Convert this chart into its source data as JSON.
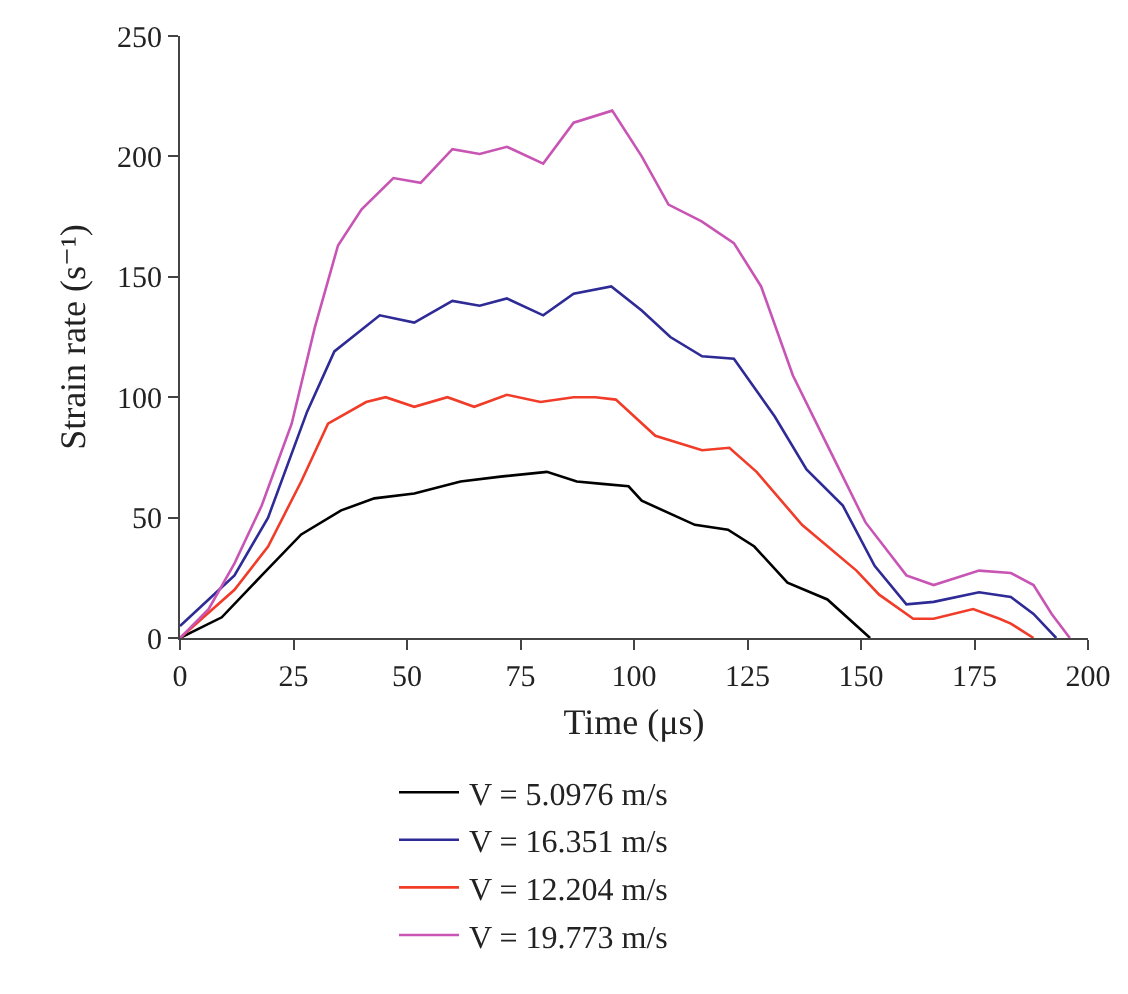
{
  "chart_data": {
    "type": "line",
    "xlabel": "Time (μs)",
    "ylabel": "Strain rate (s⁻¹)",
    "xlim": [
      0,
      200
    ],
    "xticks": [
      0,
      25,
      50,
      75,
      100,
      125,
      150,
      175,
      200
    ],
    "ylim": [
      0,
      250
    ],
    "yticks": [
      0,
      50,
      100,
      150,
      200,
      250
    ],
    "grid": false,
    "legend": "bottom",
    "marker": "none",
    "line_style": "solid",
    "series": [
      {
        "name": "V = 5.0976 m/s",
        "color": "#000000",
        "x": [
          0,
          9.2,
          18,
          26.7,
          35.5,
          42.8,
          51.6,
          61.8,
          70.6,
          80.8,
          87.4,
          93,
          98.8,
          101.7,
          113.4,
          120.7,
          126.5,
          133.8,
          142.6,
          152
        ],
        "values": [
          0,
          8.6,
          26,
          43,
          53,
          58,
          60,
          65,
          67,
          69,
          65,
          64,
          63,
          57,
          47,
          45,
          38,
          23,
          16,
          0
        ]
      },
      {
        "name": "V = 12.204 m/s",
        "color": "#f03c28",
        "x": [
          0,
          12,
          19.4,
          26.7,
          32.6,
          41,
          45.3,
          51.6,
          58.9,
          64.8,
          72,
          79.4,
          86.7,
          91.5,
          96,
          104.7,
          115,
          121,
          127,
          137,
          149,
          154,
          161.5,
          166,
          174.7,
          180.5,
          183,
          188
        ],
        "values": [
          0,
          20,
          38,
          65,
          89,
          98,
          100,
          96,
          100,
          96,
          101,
          98,
          100,
          100,
          99,
          84,
          78,
          79,
          69,
          47,
          28,
          18,
          8,
          8,
          12,
          8,
          6,
          0
        ]
      },
      {
        "name": "V = 16.351 m/s",
        "color": "#2e2a96",
        "x": [
          0,
          6.3,
          12,
          19.4,
          28,
          34,
          44,
          51.6,
          60,
          66,
          72,
          80,
          86.7,
          95,
          101.7,
          108,
          115,
          122,
          131,
          138,
          146,
          153,
          160,
          166,
          176,
          183,
          188,
          193
        ],
        "values": [
          5,
          16,
          26,
          50,
          94,
          119,
          134,
          131,
          140,
          138,
          141,
          134,
          143,
          146,
          136,
          125,
          117,
          116,
          92,
          70,
          55,
          30,
          14,
          15,
          19,
          17,
          10,
          0
        ]
      },
      {
        "name": "V = 19.773 m/s",
        "color": "#c855b4",
        "x": [
          0,
          6.3,
          12,
          18,
          24.6,
          29.7,
          34.8,
          40,
          47,
          53,
          60,
          66,
          72,
          80,
          86.7,
          95.2,
          101.7,
          107.6,
          114.9,
          122,
          128,
          135,
          142.6,
          151,
          160,
          166,
          176,
          183,
          188,
          192,
          196
        ],
        "values": [
          0,
          12,
          31,
          55,
          89,
          129,
          163,
          178,
          191,
          189,
          203,
          201,
          204,
          197,
          214,
          219,
          200,
          180,
          173,
          164,
          146,
          109,
          80,
          48,
          26,
          22,
          28,
          27,
          22,
          10,
          0
        ]
      }
    ]
  }
}
